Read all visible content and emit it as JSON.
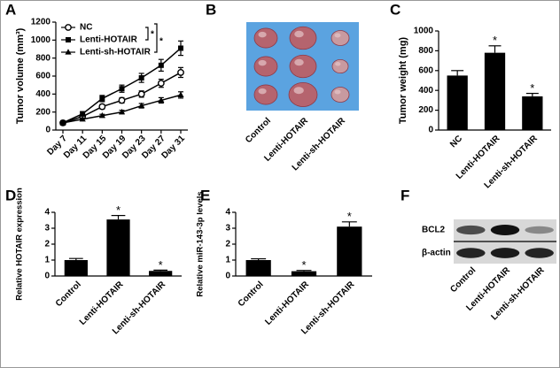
{
  "chart_data": [
    {
      "panel": "A",
      "type": "line",
      "ylabel": "Tumor volume (mm³)",
      "categories": [
        "Day 7",
        "Day 11",
        "Day 15",
        "Day 19",
        "Day 23",
        "Day 27",
        "Day 31"
      ],
      "series": [
        {
          "name": "NC",
          "color": "#000000",
          "marker": "circle",
          "values": [
            80,
            150,
            260,
            330,
            400,
            520,
            640
          ],
          "errors": [
            10,
            20,
            25,
            30,
            35,
            45,
            55
          ]
        },
        {
          "name": "Lenti-HOTAIR",
          "color": "#000000",
          "marker": "square",
          "values": [
            80,
            180,
            350,
            460,
            580,
            720,
            910
          ],
          "errors": [
            10,
            25,
            35,
            40,
            50,
            65,
            80
          ]
        },
        {
          "name": "Lenti-sh-HOTAIR",
          "color": "#000000",
          "marker": "triangle",
          "values": [
            80,
            120,
            160,
            200,
            270,
            330,
            390
          ],
          "errors": [
            10,
            15,
            15,
            20,
            25,
            30,
            35
          ]
        }
      ],
      "annotations": [
        "*",
        "*"
      ],
      "ylim": [
        0,
        1200
      ],
      "yticks": [
        0,
        200,
        400,
        600,
        800,
        1000,
        1200
      ]
    },
    {
      "panel": "B",
      "type": "image",
      "categories": [
        "Control",
        "Lenti-HOTAIR",
        "Lenti-sh-HOTAIR"
      ]
    },
    {
      "panel": "C",
      "type": "bar",
      "ylabel": "Tumor weight (mg)",
      "color": "#000000",
      "categories": [
        "NC",
        "Lenti-HOTAIR",
        "Lenti-sh-HOTAIR"
      ],
      "values": [
        550,
        780,
        340
      ],
      "errors": [
        50,
        70,
        30
      ],
      "marks": [
        null,
        "*",
        "*"
      ],
      "ylim": [
        0,
        1000
      ],
      "yticks": [
        0,
        200,
        400,
        600,
        800,
        1000
      ]
    },
    {
      "panel": "D",
      "type": "bar",
      "ylabel": "Relative HOTAIR expression",
      "color": "#000000",
      "categories": [
        "Control",
        "Lenti-HOTAIR",
        "Lenti-sh-HOTAIR"
      ],
      "values": [
        1.0,
        3.55,
        0.32
      ],
      "errors": [
        0.1,
        0.25,
        0.05
      ],
      "marks": [
        null,
        "*",
        "*"
      ],
      "ylim": [
        0,
        4
      ],
      "yticks": [
        0,
        1,
        2,
        3,
        4
      ]
    },
    {
      "panel": "E",
      "type": "bar",
      "ylabel": "Relative miR-143-3p levels",
      "color": "#000000",
      "categories": [
        "Control",
        "Lenti-HOTAIR",
        "Lenti-sh-HOTAIR"
      ],
      "values": [
        1.0,
        0.3,
        3.1
      ],
      "errors": [
        0.08,
        0.05,
        0.3
      ],
      "marks": [
        null,
        "*",
        "*"
      ],
      "ylim": [
        0,
        4
      ],
      "yticks": [
        0,
        1,
        2,
        3,
        4
      ]
    },
    {
      "panel": "F",
      "type": "blot",
      "rows": [
        "BCL2",
        "β-actin"
      ],
      "categories": [
        "Control",
        "Lenti-HOTAIR",
        "Lenti-sh-HOTAIR"
      ]
    }
  ]
}
